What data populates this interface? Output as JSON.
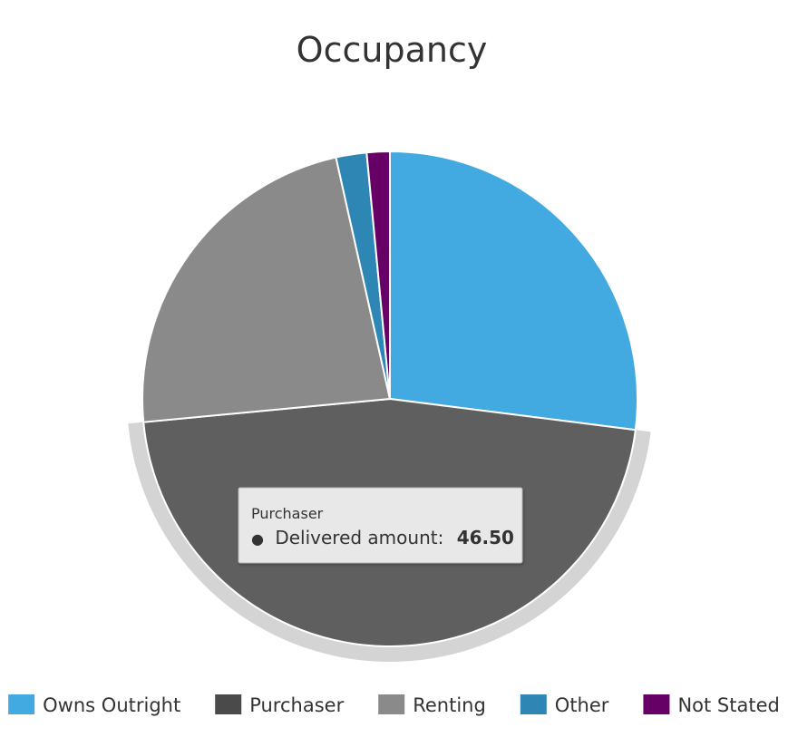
{
  "chart_data": {
    "type": "pie",
    "title": "Occupancy",
    "categories": [
      "Owns Outright",
      "Purchaser",
      "Renting",
      "Other",
      "Not Stated"
    ],
    "values": [
      27.0,
      46.5,
      23.0,
      2.0,
      1.5
    ],
    "colors": [
      "#42aae0",
      "#5f5f5f",
      "#8a8a8a",
      "#2e86b4",
      "#660066"
    ],
    "legend_position": "bottom",
    "highlighted_slice": "Purchaser",
    "tooltip": {
      "series_name": "Purchaser",
      "bullet": "●",
      "label": "Delivered amount:",
      "value": "46.50"
    }
  }
}
